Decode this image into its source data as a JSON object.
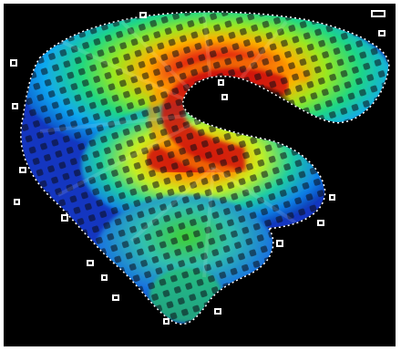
{
  "image": {
    "subject": "rainbow-colormap-surface",
    "colors": {
      "background": "#000000",
      "frame": "#ffffff",
      "hot": "#e01010",
      "warm": "#ffd800",
      "mid": "#30e040",
      "cool": "#10c8ff",
      "cold": "#1030d0",
      "grid": "#0a0a14"
    }
  }
}
